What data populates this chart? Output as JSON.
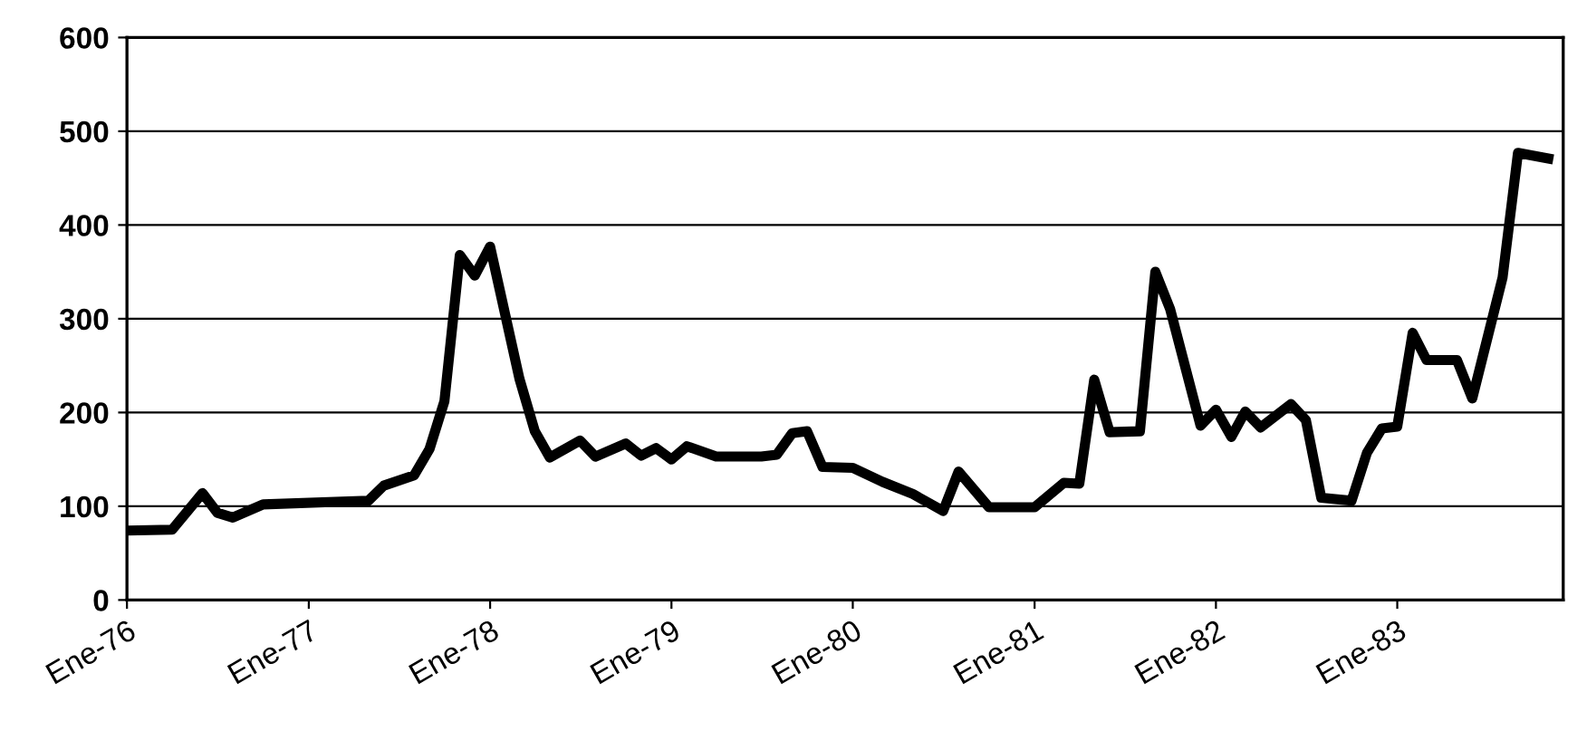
{
  "chart_data": {
    "type": "line",
    "x": [
      "1976-01",
      "1976-04",
      "1976-06",
      "1976-07",
      "1976-08",
      "1976-10",
      "1977-05",
      "1977-06",
      "1977-08",
      "1977-09",
      "1977-10",
      "1977-11",
      "1977-12",
      "1978-01",
      "1978-03",
      "1978-04",
      "1978-05",
      "1978-07",
      "1978-08",
      "1978-10",
      "1978-11",
      "1978-12",
      "1979-01",
      "1979-02",
      "1979-04",
      "1979-07",
      "1979-08",
      "1979-09",
      "1979-10",
      "1979-11",
      "1980-01",
      "1980-03",
      "1980-05",
      "1980-07",
      "1980-08",
      "1980-10",
      "1981-01",
      "1981-03",
      "1981-04",
      "1981-05",
      "1981-06",
      "1981-08",
      "1981-09",
      "1981-10",
      "1981-12",
      "1982-01",
      "1982-02",
      "1982-03",
      "1982-04",
      "1982-06",
      "1982-07",
      "1982-08",
      "1982-10",
      "1982-11",
      "1982-12",
      "1983-01",
      "1983-02",
      "1983-03",
      "1983-05",
      "1983-06",
      "1983-08",
      "1983-09",
      "1983-11"
    ],
    "series": [
      {
        "color": "#000000",
        "values": [
          74,
          75,
          114,
          93,
          88,
          102,
          106,
          122,
          133,
          161,
          212,
          368,
          346,
          377,
          236,
          180,
          152,
          170,
          153,
          167,
          154,
          162,
          150,
          164,
          153,
          153,
          155,
          178,
          180,
          142,
          141,
          126,
          113,
          95,
          137,
          99,
          99,
          125,
          124,
          235,
          179,
          180,
          350,
          310,
          186,
          203,
          174,
          201,
          184,
          209,
          192,
          109,
          106,
          157,
          183,
          185,
          285,
          256,
          256,
          215,
          344,
          477,
          471
        ]
      }
    ],
    "xlim": [
      "1976-01",
      "1983-12"
    ],
    "xticks": [
      {
        "value": "1976-01",
        "label": "Ene-76"
      },
      {
        "value": "1977-01",
        "label": "Ene-77"
      },
      {
        "value": "1978-01",
        "label": "Ene-78"
      },
      {
        "value": "1979-01",
        "label": "Ene-79"
      },
      {
        "value": "1980-01",
        "label": "Ene-80"
      },
      {
        "value": "1981-01",
        "label": "Ene-81"
      },
      {
        "value": "1982-01",
        "label": "Ene-82"
      },
      {
        "value": "1983-01",
        "label": "Ene-83"
      }
    ],
    "ylim": [
      0,
      600
    ],
    "yticks": [
      0,
      100,
      200,
      300,
      400,
      500,
      600
    ],
    "grid": "y",
    "legend": false,
    "marker": "none",
    "line_style": "solid"
  }
}
